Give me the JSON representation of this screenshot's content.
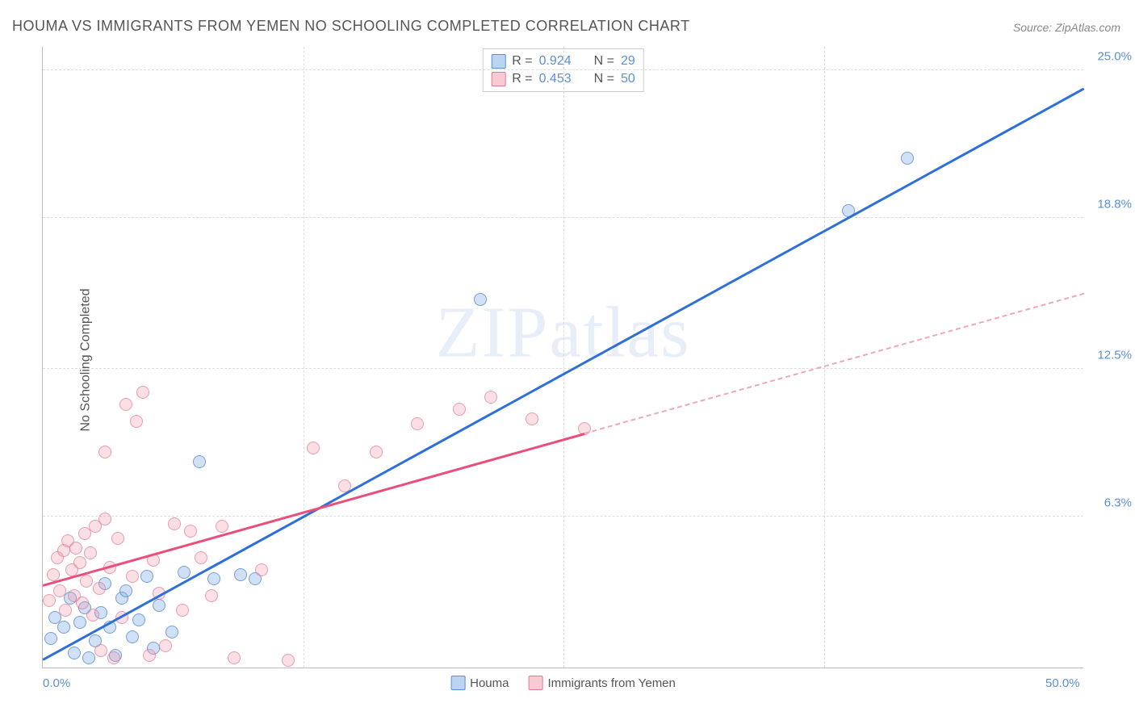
{
  "title": "HOUMA VS IMMIGRANTS FROM YEMEN NO SCHOOLING COMPLETED CORRELATION CHART",
  "source": "Source: ZipAtlas.com",
  "y_axis_label": "No Schooling Completed",
  "watermark": "ZIPatlas",
  "chart": {
    "type": "scatter",
    "xlim": [
      0,
      50
    ],
    "ylim": [
      0,
      26
    ],
    "x_ticks": [
      0,
      50
    ],
    "x_tick_labels": [
      "0.0%",
      "50.0%"
    ],
    "y_ticks": [
      6.3,
      12.5,
      18.8,
      25.0
    ],
    "y_tick_labels": [
      "6.3%",
      "12.5%",
      "18.8%",
      "25.0%"
    ],
    "grid_color": "#dddddd",
    "background_color": "#ffffff",
    "axis_color": "#bbbbbb",
    "tick_label_color": "#5b8fd6",
    "v_gridlines": [
      12.5,
      25,
      37.5
    ],
    "series": [
      {
        "name": "Houma",
        "color_fill": "rgba(120,170,230,0.35)",
        "color_stroke": "rgba(80,130,200,0.7)",
        "R": "0.924",
        "N": "29",
        "trend": {
          "x1": 0,
          "y1": 0.3,
          "x2": 50,
          "y2": 24.2,
          "color": "#2e6fd9",
          "solid_to_x": 50
        },
        "points": [
          [
            0.4,
            1.2
          ],
          [
            0.6,
            2.1
          ],
          [
            1.0,
            1.7
          ],
          [
            1.3,
            2.9
          ],
          [
            1.5,
            0.6
          ],
          [
            1.8,
            1.9
          ],
          [
            2.0,
            2.5
          ],
          [
            2.2,
            0.4
          ],
          [
            2.5,
            1.1
          ],
          [
            2.8,
            2.3
          ],
          [
            3.0,
            3.5
          ],
          [
            3.2,
            1.7
          ],
          [
            3.5,
            0.5
          ],
          [
            3.8,
            2.9
          ],
          [
            4.0,
            3.2
          ],
          [
            4.3,
            1.3
          ],
          [
            4.6,
            2.0
          ],
          [
            5.0,
            3.8
          ],
          [
            5.3,
            0.8
          ],
          [
            5.6,
            2.6
          ],
          [
            6.2,
            1.5
          ],
          [
            6.8,
            4.0
          ],
          [
            7.5,
            8.6
          ],
          [
            8.2,
            3.7
          ],
          [
            9.5,
            3.9
          ],
          [
            10.2,
            3.7
          ],
          [
            21.0,
            15.4
          ],
          [
            38.7,
            19.1
          ],
          [
            41.5,
            21.3
          ]
        ]
      },
      {
        "name": "Immigrants from Yemen",
        "color_fill": "rgba(240,150,170,0.3)",
        "color_stroke": "rgba(220,110,140,0.6)",
        "R": "0.453",
        "N": "50",
        "trend": {
          "x1": 0,
          "y1": 3.4,
          "x2": 50,
          "y2": 15.6,
          "color": "#e94f7a",
          "solid_to_x": 26
        },
        "points": [
          [
            0.3,
            2.8
          ],
          [
            0.5,
            3.9
          ],
          [
            0.7,
            4.6
          ],
          [
            0.8,
            3.2
          ],
          [
            1.0,
            4.9
          ],
          [
            1.1,
            2.4
          ],
          [
            1.2,
            5.3
          ],
          [
            1.4,
            4.1
          ],
          [
            1.5,
            3.0
          ],
          [
            1.6,
            5.0
          ],
          [
            1.8,
            4.4
          ],
          [
            1.9,
            2.7
          ],
          [
            2.0,
            5.6
          ],
          [
            2.1,
            3.6
          ],
          [
            2.3,
            4.8
          ],
          [
            2.4,
            2.2
          ],
          [
            2.5,
            5.9
          ],
          [
            2.7,
            3.3
          ],
          [
            2.8,
            0.7
          ],
          [
            3.0,
            6.2
          ],
          [
            3.2,
            4.2
          ],
          [
            3.4,
            0.4
          ],
          [
            3.6,
            5.4
          ],
          [
            3.8,
            2.1
          ],
          [
            4.0,
            11.0
          ],
          [
            4.3,
            3.8
          ],
          [
            4.5,
            10.3
          ],
          [
            4.8,
            11.5
          ],
          [
            5.1,
            0.5
          ],
          [
            5.3,
            4.5
          ],
          [
            5.6,
            3.1
          ],
          [
            5.9,
            0.9
          ],
          [
            6.3,
            6.0
          ],
          [
            6.7,
            2.4
          ],
          [
            7.1,
            5.7
          ],
          [
            7.6,
            4.6
          ],
          [
            8.1,
            3.0
          ],
          [
            8.6,
            5.9
          ],
          [
            9.2,
            0.4
          ],
          [
            3.0,
            9.0
          ],
          [
            10.5,
            4.1
          ],
          [
            11.8,
            0.3
          ],
          [
            13.0,
            9.2
          ],
          [
            14.5,
            7.6
          ],
          [
            16.0,
            9.0
          ],
          [
            18.0,
            10.2
          ],
          [
            20.0,
            10.8
          ],
          [
            21.5,
            11.3
          ],
          [
            23.5,
            10.4
          ],
          [
            26.0,
            10.0
          ]
        ]
      }
    ]
  },
  "legend_top": {
    "rows": [
      {
        "swatch": "blue",
        "r_label": "R =",
        "r_val": "0.924",
        "n_label": "N =",
        "n_val": "29"
      },
      {
        "swatch": "pink",
        "r_label": "R =",
        "r_val": "0.453",
        "n_label": "N =",
        "n_val": "50"
      }
    ]
  },
  "legend_bottom": {
    "items": [
      {
        "swatch": "blue",
        "label": "Houma"
      },
      {
        "swatch": "pink",
        "label": "Immigrants from Yemen"
      }
    ]
  }
}
